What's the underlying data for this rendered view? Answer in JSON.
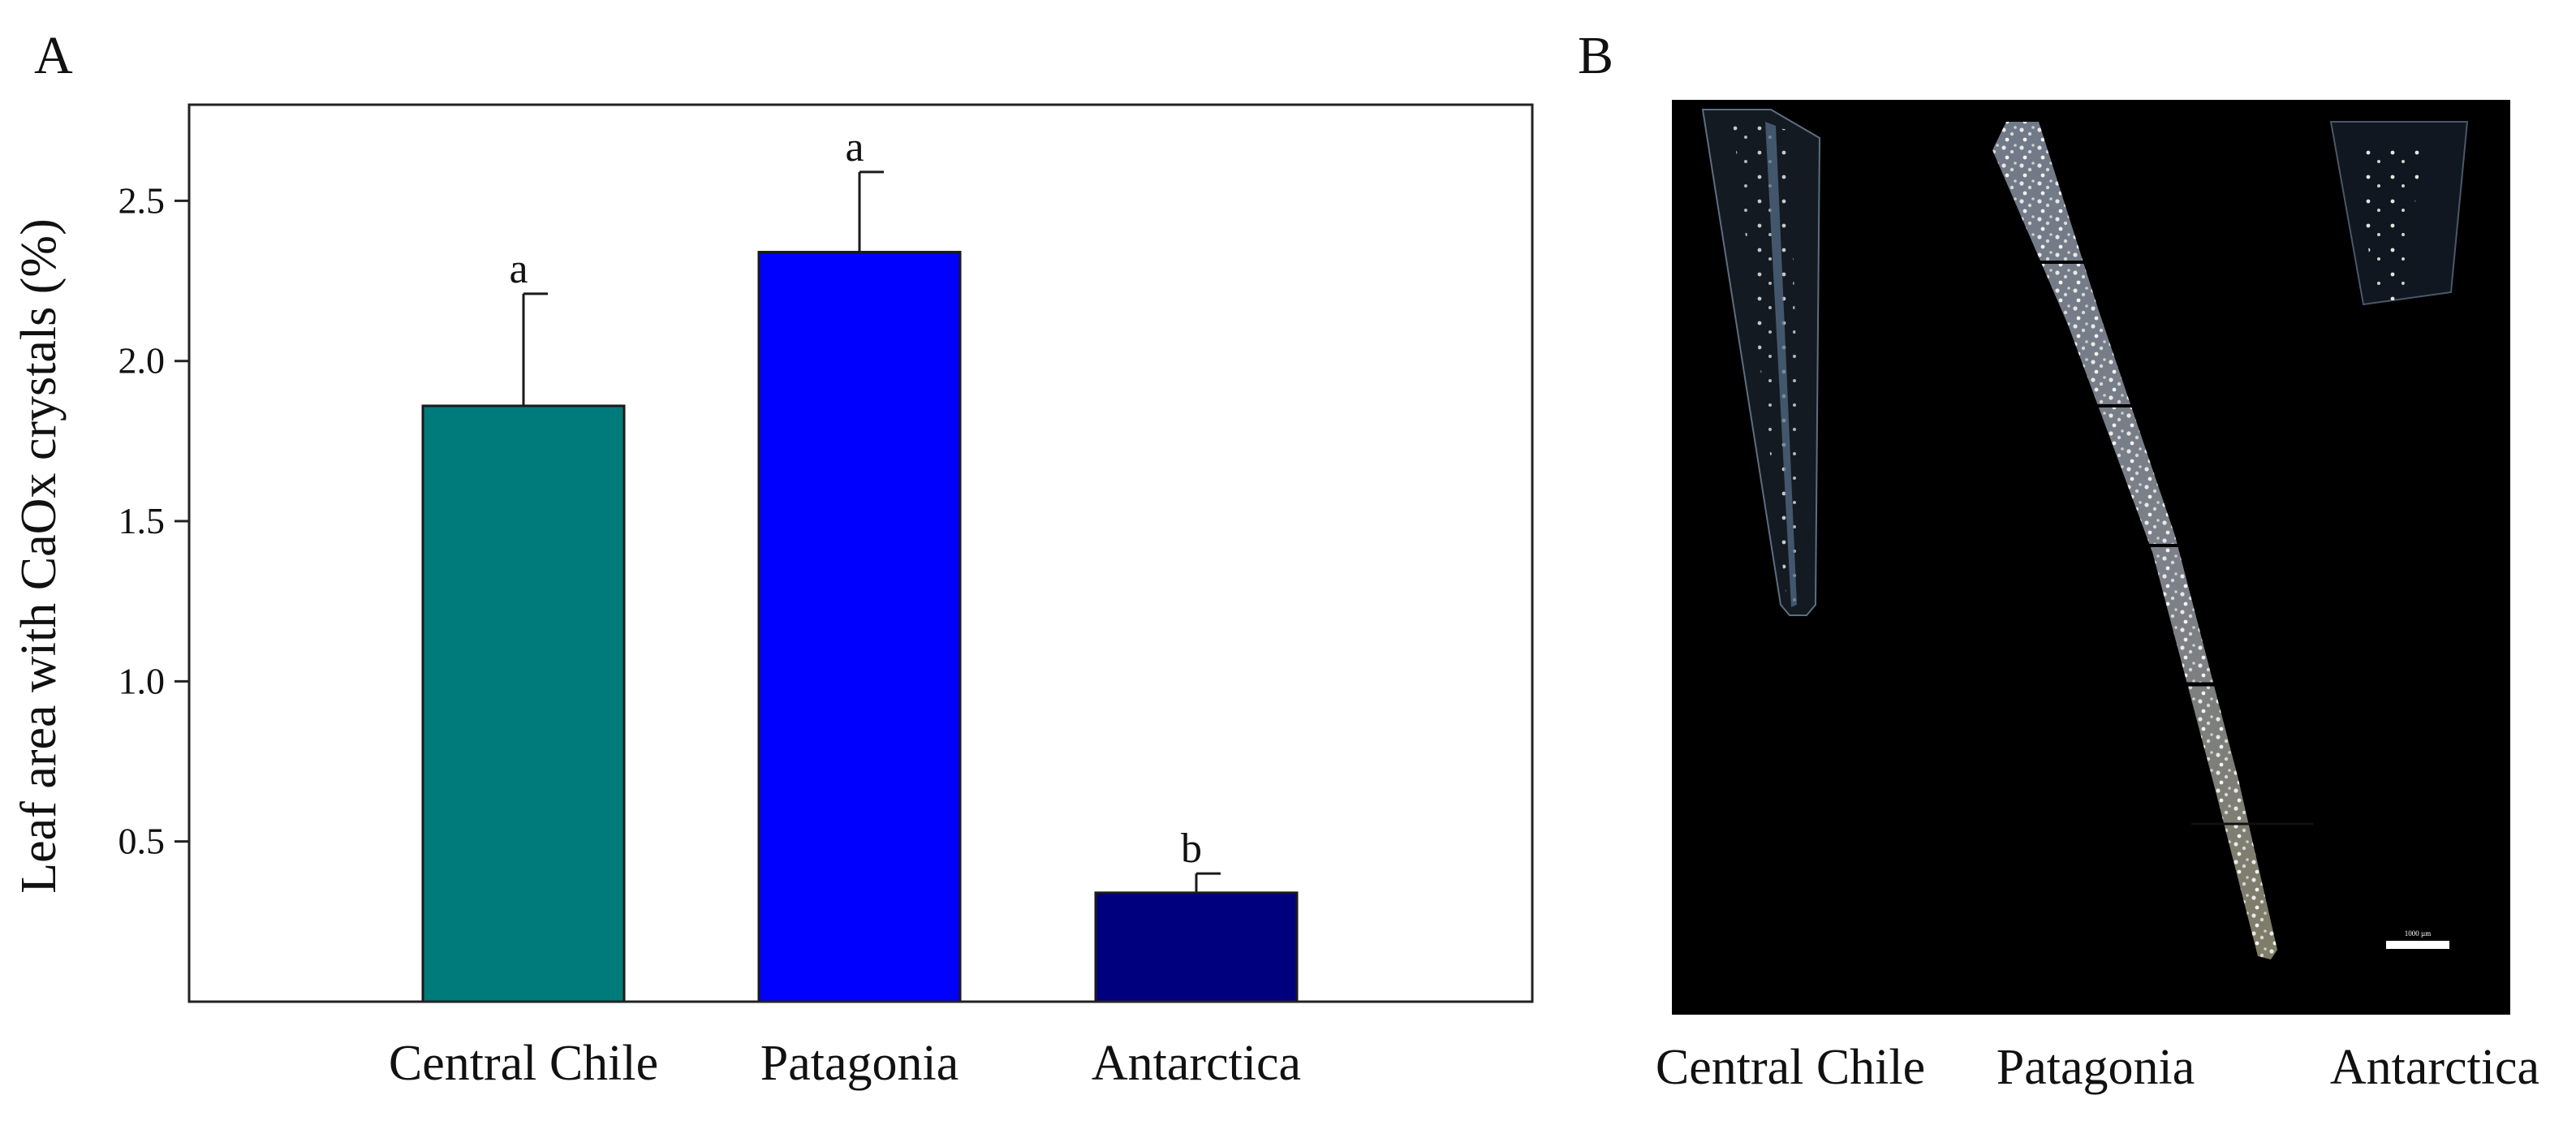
{
  "panels": {
    "a": {
      "letter": "A"
    },
    "b": {
      "letter": "B",
      "labels": [
        "Central Chile",
        "Patagonia",
        "Antarctica"
      ],
      "scale_bar_label": "1000 µm"
    }
  },
  "chart_data": {
    "type": "bar",
    "title": "",
    "xlabel": "",
    "ylabel": "Leaf area with CaOx crystals (%)",
    "categories": [
      "Central Chile",
      "Patagonia",
      "Antarctica"
    ],
    "values": [
      1.86,
      2.34,
      0.34
    ],
    "errors": [
      0.35,
      0.25,
      0.06
    ],
    "significance": [
      "a",
      "a",
      "b"
    ],
    "colors": [
      "#007b7b",
      "#0000ff",
      "#00007f"
    ],
    "ylim": [
      0,
      2.8
    ],
    "yticks": [
      0.5,
      1.0,
      1.5,
      2.0,
      2.5
    ],
    "ytick_labels": [
      "0.5",
      "1.0",
      "1.5",
      "2.0",
      "2.5"
    ],
    "grid": false,
    "legend": false
  }
}
